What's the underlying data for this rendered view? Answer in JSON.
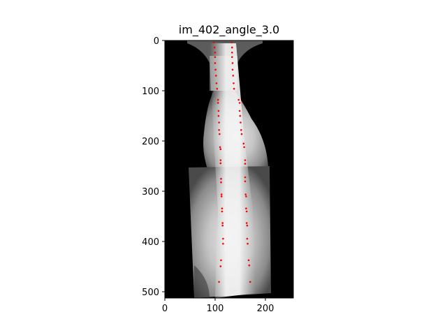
{
  "figure": {
    "title": "im_402_angle_3.0"
  },
  "axes": {
    "x_ticks": [
      "0",
      "100",
      "200"
    ],
    "y_ticks": [
      "0",
      "100",
      "200",
      "300",
      "400",
      "500"
    ],
    "xlim": [
      0,
      256
    ],
    "ylim": [
      512,
      0
    ]
  },
  "image": {
    "description_name": "spine-xray",
    "background_color": "#000000"
  },
  "chart_data": {
    "type": "scatter",
    "title": "im_402_angle_3.0",
    "xlabel": "",
    "ylabel": "",
    "xlim": [
      0,
      256
    ],
    "ylim": [
      512,
      0
    ],
    "y_inverted": true,
    "grid": false,
    "marker_color": "#ff0000",
    "series": [
      {
        "points": [
          [
            98,
            4
          ],
          [
            133,
            4
          ],
          [
            99,
            14
          ],
          [
            134,
            14
          ],
          [
            100,
            24
          ],
          [
            134,
            24
          ],
          [
            100,
            33
          ],
          [
            134,
            33
          ],
          [
            100,
            45
          ],
          [
            135,
            45
          ],
          [
            101,
            58
          ],
          [
            135,
            58
          ],
          [
            102,
            70
          ],
          [
            136,
            70
          ],
          [
            103,
            85
          ],
          [
            137,
            85
          ],
          [
            104,
            96
          ],
          [
            138,
            96
          ],
          [
            106,
            118
          ],
          [
            147,
            118
          ],
          [
            106,
            124
          ],
          [
            149,
            124
          ],
          [
            107,
            140
          ],
          [
            149,
            140
          ],
          [
            107,
            150
          ],
          [
            150,
            150
          ],
          [
            108,
            163
          ],
          [
            151,
            163
          ],
          [
            108,
            178
          ],
          [
            152,
            178
          ],
          [
            109,
            186
          ],
          [
            153,
            186
          ],
          [
            110,
            212
          ],
          [
            157,
            205
          ],
          [
            111,
            216
          ],
          [
            158,
            212
          ],
          [
            111,
            238
          ],
          [
            160,
            238
          ],
          [
            111,
            244
          ],
          [
            160,
            245
          ],
          [
            112,
            275
          ],
          [
            160,
            272
          ],
          [
            112,
            282
          ],
          [
            160,
            280
          ],
          [
            113,
            306
          ],
          [
            161,
            306
          ],
          [
            113,
            310
          ],
          [
            162,
            310
          ],
          [
            114,
            334
          ],
          [
            162,
            334
          ],
          [
            114,
            340
          ],
          [
            163,
            340
          ],
          [
            115,
            363
          ],
          [
            163,
            363
          ],
          [
            115,
            368
          ],
          [
            164,
            368
          ],
          [
            116,
            394
          ],
          [
            164,
            394
          ],
          [
            116,
            404
          ],
          [
            165,
            404
          ],
          [
            112,
            437
          ],
          [
            167,
            437
          ],
          [
            111,
            449
          ],
          [
            168,
            447
          ],
          [
            108,
            480
          ],
          [
            170,
            480
          ]
        ]
      }
    ]
  }
}
